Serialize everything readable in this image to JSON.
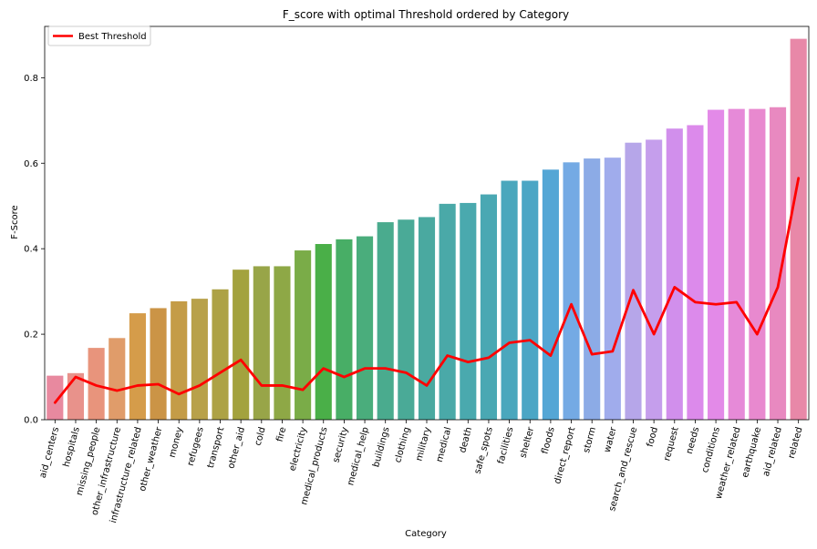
{
  "chart_data": {
    "type": "bar",
    "title": "F_score with optimal Threshold ordered by Category",
    "xlabel": "Category",
    "ylabel": "F-Score",
    "ylim": [
      0,
      0.92
    ],
    "yticks": [
      0.0,
      0.2,
      0.4,
      0.6,
      0.8
    ],
    "ytick_labels": [
      "0.0",
      "0.2",
      "0.4",
      "0.6",
      "0.8"
    ],
    "grid": false,
    "legend": "top-left",
    "categories": [
      "aid_centers",
      "hospitals",
      "missing_people",
      "other_infrastructure",
      "infrastructure_related",
      "other_weather",
      "money",
      "refugees",
      "transport",
      "other_aid",
      "cold",
      "fire",
      "electricity",
      "medical_products",
      "security",
      "medical_help",
      "buildings",
      "clothing",
      "military",
      "medical",
      "death",
      "safe_spots",
      "facilities",
      "shelter",
      "floods",
      "direct_report",
      "storm",
      "water",
      "search_and_rescue",
      "food",
      "request",
      "needs",
      "conditions",
      "weather_related",
      "earthquake",
      "aid_related",
      "related"
    ],
    "series": [
      {
        "values": [
          0.103,
          0.109,
          0.168,
          0.191,
          0.249,
          0.261,
          0.277,
          0.283,
          0.305,
          0.351,
          0.359,
          0.359,
          0.396,
          0.411,
          0.422,
          0.429,
          0.462,
          0.468,
          0.474,
          0.505,
          0.507,
          0.527,
          0.559,
          0.559,
          0.585,
          0.602,
          0.611,
          0.613,
          0.648,
          0.655,
          0.681,
          0.689,
          0.725,
          0.727,
          0.727,
          0.731,
          0.891
        ],
        "colors": [
          "#e8899f",
          "#e8928b",
          "#e8947c",
          "#e09c6a",
          "#d59c4a",
          "#cb9446",
          "#c49c47",
          "#b8a14a",
          "#ada245",
          "#a3a23e",
          "#98a548",
          "#8ea846",
          "#7aac48",
          "#4aaf48",
          "#48ae66",
          "#4aad7c",
          "#4aab8e",
          "#4aaa97",
          "#4aa9a0",
          "#4aa9a8",
          "#4aa9ae",
          "#4aa8b3",
          "#4aa7bd",
          "#4ba6c5",
          "#54a6d5",
          "#74aae4",
          "#8cabe6",
          "#a0acec",
          "#b6a6e9",
          "#c59eec",
          "#d18fec",
          "#dc8aeb",
          "#e38ae8",
          "#e68ad8",
          "#e889cf",
          "#e889c0",
          "#e888a8"
        ]
      },
      {
        "name": "Best Threshold",
        "type": "line",
        "color": "#ff0000",
        "values": [
          0.04,
          0.1,
          0.08,
          0.068,
          0.08,
          0.083,
          0.06,
          0.08,
          0.11,
          0.14,
          0.08,
          0.08,
          0.07,
          0.12,
          0.1,
          0.12,
          0.12,
          0.11,
          0.08,
          0.15,
          0.135,
          0.145,
          0.18,
          0.186,
          0.15,
          0.27,
          0.153,
          0.16,
          0.303,
          0.2,
          0.31,
          0.275,
          0.27,
          0.275,
          0.2,
          0.31,
          0.565
        ]
      }
    ]
  }
}
